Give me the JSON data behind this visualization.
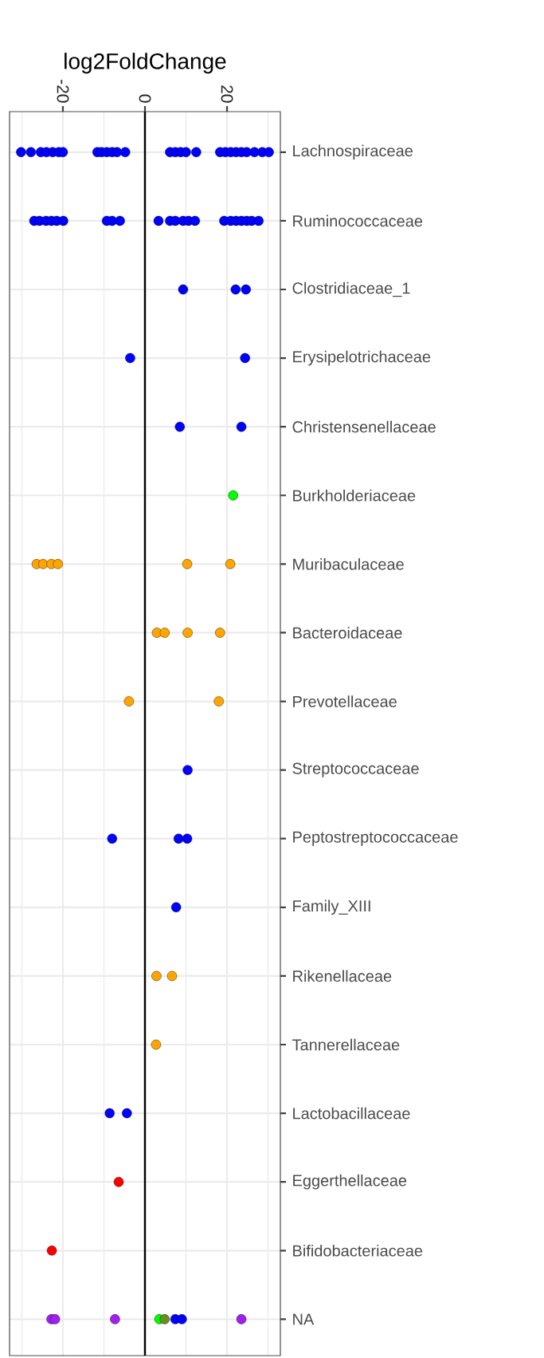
{
  "chart_data": {
    "type": "scatter",
    "orientation": "horizontal",
    "xlabel": "log2FoldChange",
    "categories": [
      "Lachnospiraceae",
      "Ruminococcaceae",
      "Clostridiaceae_1",
      "Erysipelotrichaceae",
      "Christensenellaceae",
      "Burkholderiaceae",
      "Muribaculaceae",
      "Bacteroidaceae",
      "Prevotellaceae",
      "Streptococcaceae",
      "Peptostreptococcaceae",
      "Family_XIII",
      "Rikenellaceae",
      "Tannerellaceae",
      "Lactobacillaceae",
      "Eggerthellaceae",
      "Bifidobacteriaceae",
      "NA"
    ],
    "xlim": [
      -33,
      33
    ],
    "xticks": [
      {
        "value": -30,
        "label": null
      },
      -20,
      {
        "value": -10,
        "label": null
      },
      0,
      {
        "value": 10,
        "label": null
      },
      20,
      {
        "value": 30,
        "label": null
      }
    ],
    "grid": true,
    "ref_lines": [
      {
        "axis": "x",
        "value": 0,
        "color": "#000000"
      }
    ],
    "series": [
      {
        "color": "#0000ff",
        "values": [
          -30.2,
          -27,
          9.3,
          -3.6,
          8.5,
          null,
          null,
          null,
          null,
          10.4,
          -8,
          7.6,
          null,
          null,
          -8.6,
          null,
          null,
          7.4
        ]
      },
      {
        "color": "#0000ff",
        "values": [
          -27.8,
          -25.7,
          22.1,
          24.4,
          23.5,
          null,
          null,
          null,
          null,
          null,
          8.2,
          null,
          null,
          null,
          -4.4,
          null,
          null,
          9
        ]
      },
      {
        "color": "#0000ff",
        "values": [
          -25.4,
          -24.1,
          24.6,
          null,
          null,
          null,
          null,
          null,
          null,
          null,
          10.3,
          null,
          null,
          null,
          null,
          null,
          null,
          null
        ]
      },
      {
        "color": "#0000ff",
        "values": [
          -24,
          -22.8,
          null,
          null,
          null,
          null,
          null,
          null,
          null,
          null,
          null,
          null,
          null,
          null,
          null,
          null,
          null,
          null
        ]
      },
      {
        "color": "#0000ff",
        "values": [
          -22.5,
          -21.5,
          null,
          null,
          null,
          null,
          null,
          null,
          null,
          null,
          null,
          null,
          null,
          null,
          null,
          null,
          null,
          null
        ]
      },
      {
        "color": "#0000ff",
        "values": [
          -21,
          -19.9,
          null,
          null,
          null,
          null,
          null,
          null,
          null,
          null,
          null,
          null,
          null,
          null,
          null,
          null,
          null,
          null
        ]
      },
      {
        "color": "#0000ff",
        "values": [
          -20,
          -9.3,
          null,
          null,
          null,
          null,
          null,
          null,
          null,
          null,
          null,
          null,
          null,
          null,
          null,
          null,
          null,
          null
        ]
      },
      {
        "color": "#0000ff",
        "values": [
          -11.6,
          -8,
          null,
          null,
          null,
          null,
          null,
          null,
          null,
          null,
          null,
          null,
          null,
          null,
          null,
          null,
          null,
          null
        ]
      },
      {
        "color": "#0000ff",
        "values": [
          -10.6,
          -6.1,
          null,
          null,
          null,
          null,
          null,
          null,
          null,
          null,
          null,
          null,
          null,
          null,
          null,
          null,
          null,
          null
        ]
      },
      {
        "color": "#0000ff",
        "values": [
          -9.3,
          3.3,
          null,
          null,
          null,
          null,
          null,
          null,
          null,
          null,
          null,
          null,
          null,
          null,
          null,
          null,
          null,
          null
        ]
      },
      {
        "color": "#0000ff",
        "values": [
          -8,
          6.1,
          null,
          null,
          null,
          null,
          null,
          null,
          null,
          null,
          null,
          null,
          null,
          null,
          null,
          null,
          null,
          null
        ]
      },
      {
        "color": "#0000ff",
        "values": [
          -6.8,
          7.4,
          null,
          null,
          null,
          null,
          null,
          null,
          null,
          null,
          null,
          null,
          null,
          null,
          null,
          null,
          null,
          null
        ]
      },
      {
        "color": "#0000ff",
        "values": [
          null,
          9.3,
          null,
          null,
          null,
          null,
          null,
          null,
          null,
          null,
          null,
          null,
          null,
          null,
          null,
          null,
          null,
          null
        ]
      },
      {
        "color": "#0000ff",
        "values": [
          -4.8,
          10.6,
          null,
          null,
          null,
          null,
          null,
          null,
          null,
          null,
          null,
          null,
          null,
          null,
          null,
          null,
          null,
          null
        ]
      },
      {
        "color": "#0000ff",
        "values": [
          6.1,
          12.2,
          null,
          null,
          null,
          null,
          null,
          null,
          null,
          null,
          null,
          null,
          null,
          null,
          null,
          null,
          null,
          null
        ]
      },
      {
        "color": "#0000ff",
        "values": [
          7.4,
          19.3,
          null,
          null,
          null,
          null,
          null,
          null,
          null,
          null,
          null,
          null,
          null,
          null,
          null,
          null,
          null,
          null
        ]
      },
      {
        "color": "#0000ff",
        "values": [
          8.7,
          20.9,
          null,
          null,
          null,
          null,
          null,
          null,
          null,
          null,
          null,
          null,
          null,
          null,
          null,
          null,
          null,
          null
        ]
      },
      {
        "color": "#0000ff",
        "values": [
          10,
          22.2,
          null,
          null,
          null,
          null,
          null,
          null,
          null,
          null,
          null,
          null,
          null,
          null,
          null,
          null,
          null,
          null
        ]
      },
      {
        "color": "#0000ff",
        "values": [
          12.5,
          23.5,
          null,
          null,
          null,
          null,
          null,
          null,
          null,
          null,
          null,
          null,
          null,
          null,
          null,
          null,
          null,
          null
        ]
      },
      {
        "color": "#0000ff",
        "values": [
          18.3,
          24.8,
          null,
          null,
          null,
          null,
          null,
          null,
          null,
          null,
          null,
          null,
          null,
          null,
          null,
          null,
          null,
          null
        ]
      },
      {
        "color": "#0000ff",
        "values": [
          19.6,
          26,
          null,
          null,
          null,
          null,
          null,
          null,
          null,
          null,
          null,
          null,
          null,
          null,
          null,
          null,
          null,
          null
        ]
      },
      {
        "color": "#0000ff",
        "values": [
          20.9,
          27.7,
          null,
          null,
          null,
          null,
          null,
          null,
          null,
          null,
          null,
          null,
          null,
          null,
          null,
          null,
          null,
          null
        ]
      },
      {
        "color": "#0000ff",
        "values": [
          22.2,
          null,
          null,
          null,
          null,
          null,
          null,
          null,
          null,
          null,
          null,
          null,
          null,
          null,
          null,
          null,
          null,
          null
        ]
      },
      {
        "color": "#0000ff",
        "values": [
          23.5,
          null,
          null,
          null,
          null,
          null,
          null,
          null,
          null,
          null,
          null,
          null,
          null,
          null,
          null,
          null,
          null,
          null
        ]
      },
      {
        "color": "#0000ff",
        "values": [
          24.8,
          null,
          null,
          null,
          null,
          null,
          null,
          null,
          null,
          null,
          null,
          null,
          null,
          null,
          null,
          null,
          null,
          null
        ]
      },
      {
        "color": "#0000ff",
        "values": [
          26.7,
          null,
          null,
          null,
          null,
          null,
          null,
          null,
          null,
          null,
          null,
          null,
          null,
          null,
          null,
          null,
          null,
          null
        ]
      },
      {
        "color": "#0000ff",
        "values": [
          28.6,
          null,
          null,
          null,
          null,
          null,
          null,
          null,
          null,
          null,
          null,
          null,
          null,
          null,
          null,
          null,
          null,
          null
        ]
      },
      {
        "color": "#0000ff",
        "values": [
          30.2,
          null,
          null,
          null,
          null,
          null,
          null,
          null,
          null,
          null,
          null,
          null,
          null,
          null,
          null,
          null,
          null,
          null
        ]
      },
      {
        "color": "#ffa500",
        "values": [
          null,
          null,
          null,
          null,
          null,
          null,
          -26.4,
          2.9,
          -3.9,
          null,
          null,
          null,
          2.8,
          2.7,
          null,
          null,
          null,
          null
        ]
      },
      {
        "color": "#ffa500",
        "values": [
          null,
          null,
          null,
          null,
          null,
          null,
          -24.8,
          null,
          18,
          null,
          null,
          null,
          6.6,
          null,
          null,
          null,
          null,
          null
        ]
      },
      {
        "color": "#ffa500",
        "values": [
          null,
          null,
          null,
          null,
          null,
          null,
          -22.8,
          4.8,
          null,
          null,
          null,
          null,
          null,
          null,
          null,
          null,
          null,
          null
        ]
      },
      {
        "color": "#ffa500",
        "values": [
          null,
          null,
          null,
          null,
          null,
          null,
          -21.2,
          10.4,
          null,
          null,
          null,
          null,
          null,
          null,
          null,
          null,
          null,
          null
        ]
      },
      {
        "color": "#ffa500",
        "values": [
          null,
          null,
          null,
          null,
          null,
          null,
          10.3,
          18.3,
          null,
          null,
          null,
          null,
          null,
          null,
          null,
          null,
          null,
          null
        ]
      },
      {
        "color": "#ffa500",
        "values": [
          null,
          null,
          null,
          null,
          null,
          null,
          20.8,
          null,
          null,
          null,
          null,
          null,
          null,
          null,
          null,
          null,
          null,
          null
        ]
      },
      {
        "color": "#00ff00",
        "values": [
          null,
          null,
          null,
          null,
          null,
          21.5,
          null,
          null,
          null,
          null,
          null,
          null,
          null,
          null,
          null,
          null,
          null,
          3.5
        ]
      },
      {
        "color": "#ff0000",
        "values": [
          null,
          null,
          null,
          null,
          null,
          null,
          null,
          null,
          null,
          null,
          null,
          null,
          null,
          null,
          null,
          -6.4,
          -22.7,
          null
        ]
      },
      {
        "color": "#a020f0",
        "values": [
          null,
          null,
          null,
          null,
          null,
          null,
          null,
          null,
          null,
          null,
          null,
          null,
          null,
          null,
          null,
          null,
          null,
          -22.8
        ]
      },
      {
        "color": "#a020f0",
        "values": [
          null,
          null,
          null,
          null,
          null,
          null,
          null,
          null,
          null,
          null,
          null,
          null,
          null,
          null,
          null,
          null,
          null,
          -21.9
        ]
      },
      {
        "color": "#a020f0",
        "values": [
          null,
          null,
          null,
          null,
          null,
          null,
          null,
          null,
          null,
          null,
          null,
          null,
          null,
          null,
          null,
          null,
          null,
          -7.3
        ]
      },
      {
        "color": "#a020f0",
        "values": [
          null,
          null,
          null,
          null,
          null,
          null,
          null,
          null,
          null,
          null,
          null,
          null,
          null,
          null,
          null,
          null,
          null,
          23.5
        ]
      },
      {
        "color": "#6b8e23",
        "values": [
          null,
          null,
          null,
          null,
          null,
          null,
          null,
          null,
          null,
          null,
          null,
          null,
          null,
          null,
          null,
          null,
          null,
          4.8
        ]
      }
    ]
  }
}
